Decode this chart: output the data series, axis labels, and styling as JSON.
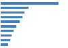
{
  "values": [
    17.6,
    8.5,
    7.3,
    6.7,
    5.8,
    4.8,
    3.9,
    3.2,
    2.8,
    2.2
  ],
  "bar_color": "#3f7fc1",
  "background_color": "#ffffff",
  "xlim": [
    0,
    20
  ],
  "grid_color": "#e0e0e0"
}
